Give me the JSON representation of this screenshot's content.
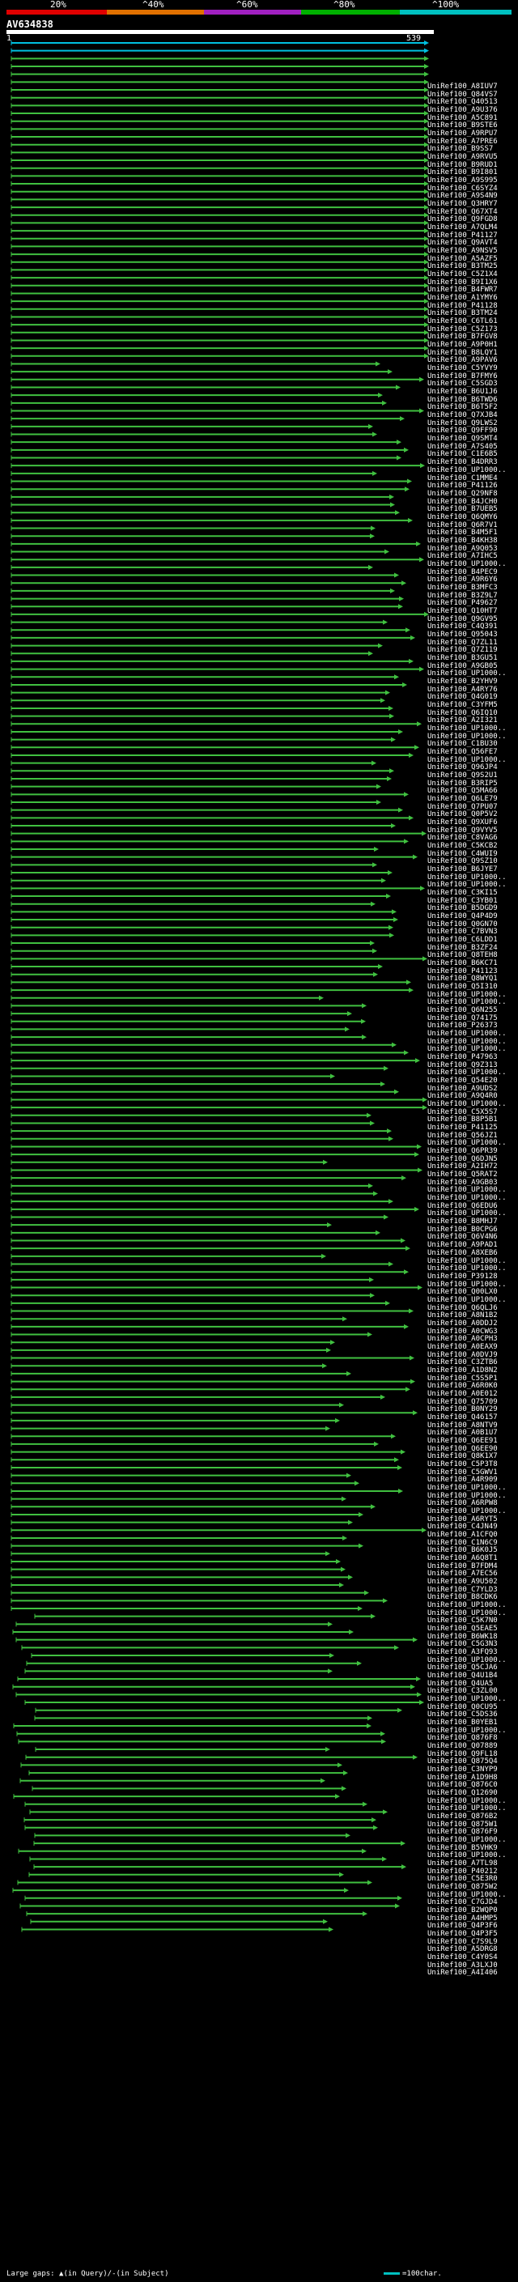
{
  "scale": {
    "labels": [
      "20%",
      "^40%",
      "^60%",
      "^80%",
      "^100%"
    ],
    "colors": [
      "#e00000",
      "#e07000",
      "#a020c0",
      "#00b000",
      "#00c0c0"
    ]
  },
  "query": {
    "name": "AV634838",
    "start": "1",
    "end": "539"
  },
  "hits": [
    "UniRef100_A8IUV7",
    "UniRef100_Q84VS7",
    "UniRef100_Q40513",
    "UniRef100_A9U376",
    "UniRef100_A5C891",
    "UniRef100_B9STE6",
    "UniRef100_A9RPU7",
    "UniRef100_A7PRE6",
    "UniRef100_B9SS7",
    "UniRef100_A9RVU5",
    "UniRef100_B9RUD1",
    "UniRef100_B9I801",
    "UniRef100_A9S995",
    "UniRef100_C6SYZ4",
    "UniRef100_A9S4N9",
    "UniRef100_Q3HRY7",
    "UniRef100_Q67XT4",
    "UniRef100_Q9FGD8",
    "UniRef100_A7QLM4",
    "UniRef100_P41127",
    "UniRef100_Q9AVT4",
    "UniRef100_A9NSV5",
    "UniRef100_A5AZF5",
    "UniRef100_B3TM25",
    "UniRef100_C5Z1X4",
    "UniRef100_B9I1X6",
    "UniRef100_B4FWR7",
    "UniRef100_A1YMY6",
    "UniRef100_P41128",
    "UniRef100_B3TM24",
    "UniRef100_C6TL61",
    "UniRef100_C5Z173",
    "UniRef100_B7FGV8",
    "UniRef100_A9P0H1",
    "UniRef100_B8LQY1",
    "UniRef100_A9PAV6",
    "UniRef100_C5YVY9",
    "UniRef100_B7FMY6",
    "UniRef100_C5SGD3",
    "UniRef100_B6U1J6",
    "UniRef100_B6TWD6",
    "UniRef100_B6T5F2",
    "UniRef100_Q7XJB4",
    "UniRef100_Q9LWS2",
    "UniRef100_Q9FF90",
    "UniRef100_Q9SMT4",
    "UniRef100_A7S405",
    "UniRef100_C1E6B5",
    "UniRef100_B4DRR3",
    "UniRef100_UP1000..",
    "UniRef100_C1MME4",
    "UniRef100_P41126",
    "UniRef100_Q29NF8",
    "UniRef100_B4JCH0",
    "UniRef100_B7UEB5",
    "UniRef100_Q6QMY6",
    "UniRef100_Q6R7V1",
    "UniRef100_B4M5F1",
    "UniRef100_B4KH38",
    "UniRef100_A9Q053",
    "UniRef100_A7IHC5",
    "UniRef100_UP1000..",
    "UniRef100_B4PEC9",
    "UniRef100_A9R6Y6",
    "UniRef100_B3MFC3",
    "UniRef100_B3Z9L7",
    "UniRef100_P49627",
    "UniRef100_Q10HT7",
    "UniRef100_Q9GV95",
    "UniRef100_C4Q391",
    "UniRef100_Q95043",
    "UniRef100_Q7ZL11",
    "UniRef100_Q7Z119",
    "UniRef100_B3GU51",
    "UniRef100_A9GB05",
    "UniRef100_UP1000..",
    "UniRef100_B2YHV9",
    "UniRef100_A4RY76",
    "UniRef100_Q4G019",
    "UniRef100_C3YFM5",
    "UniRef100_Q6IQ10",
    "UniRef100_A2I321",
    "UniRef100_UP1000..",
    "UniRef100_UP1000..",
    "UniRef100_C1BU30",
    "UniRef100_Q56FE7",
    "UniRef100_UP1000..",
    "UniRef100_Q96JP4",
    "UniRef100_Q9S2U1",
    "UniRef100_B3RIP5",
    "UniRef100_Q5MA66",
    "UniRef100_Q6LE79",
    "UniRef100_Q7PU07",
    "UniRef100_Q0P5V2",
    "UniRef100_Q9XUF6",
    "UniRef100_Q9VYV5",
    "UniRef100_C8VAG6",
    "UniRef100_C5KCB2",
    "UniRef100_C4WUI9",
    "UniRef100_Q9SZ10",
    "UniRef100_B6JYE7",
    "UniRef100_UP1000..",
    "UniRef100_UP1000..",
    "UniRef100_C3KI15",
    "UniRef100_C3YB01",
    "UniRef100_B5DGD9",
    "UniRef100_Q4P4D9",
    "UniRef100_Q0GN70",
    "UniRef100_C7BVN3",
    "UniRef100_C6LDD1",
    "UniRef100_B3ZF24",
    "UniRef100_Q8TEH8",
    "UniRef100_B6KC71",
    "UniRef100_P41123",
    "UniRef100_Q8WYQ1",
    "UniRef100_Q5I310",
    "UniRef100_UP1000..",
    "UniRef100_UP1000..",
    "UniRef100_Q6N255",
    "UniRef100_Q74175",
    "UniRef100_P26373",
    "UniRef100_UP1000..",
    "UniRef100_UP1000..",
    "UniRef100_UP1000..",
    "UniRef100_P47963",
    "UniRef100_Q9Z313",
    "UniRef100_UP1000..",
    "UniRef100_Q54E20",
    "UniRef100_A9UDS2",
    "UniRef100_A9Q4R0",
    "UniRef100_UP1000..",
    "UniRef100_C5X5S7",
    "UniRef100_B8P5B1",
    "UniRef100_P41125",
    "UniRef100_Q56JZ1",
    "UniRef100_UP1000..",
    "UniRef100_Q6PR39",
    "UniRef100_Q6DJN5",
    "UniRef100_A2IH72",
    "UniRef100_Q5RAT2",
    "UniRef100_A9GB03",
    "UniRef100_UP1000..",
    "UniRef100_UP1000..",
    "UniRef100_Q6EDU6",
    "UniRef100_UP1000..",
    "UniRef100_B8MHJ7",
    "UniRef100_B0CPG6",
    "UniRef100_Q6V4N6",
    "UniRef100_A9PAD1",
    "UniRef100_A8XEB6",
    "UniRef100_UP1000..",
    "UniRef100_UP1000..",
    "UniRef100_P39128",
    "UniRef100_UP1000..",
    "UniRef100_Q00LX0",
    "UniRef100_UP1000..",
    "UniRef100_Q6QLJ6",
    "UniRef100_A8N1B2",
    "UniRef100_A0DDJ2",
    "UniRef100_A0CWG3",
    "UniRef100_A0CPH3",
    "UniRef100_A0EAX9",
    "UniRef100_A0DVJ9",
    "UniRef100_C3ZTB6",
    "UniRef100_A1D8N2",
    "UniRef100_C5S5P1",
    "UniRef100_A6R0K0",
    "UniRef100_A0E012",
    "UniRef100_Q75709",
    "UniRef100_B0NY29",
    "UniRef100_Q46157",
    "UniRef100_A8NTV9",
    "UniRef100_A0B1U7",
    "UniRef100_Q6EE91",
    "UniRef100_Q6EE90",
    "UniRef100_Q8K1X7",
    "UniRef100_C5P3T8",
    "UniRef100_C5GWV1",
    "UniRef100_A4R909",
    "UniRef100_UP1000..",
    "UniRef100_UP1000..",
    "UniRef100_A6RPW8",
    "UniRef100_UP1000..",
    "UniRef100_A6RYT5",
    "UniRef100_C4JN49",
    "UniRef100_A1CFQ0",
    "UniRef100_C1N6C9",
    "UniRef100_B6K0J5",
    "UniRef100_A6Q8T1",
    "UniRef100_B7FDM4",
    "UniRef100_A7EC56",
    "UniRef100_A9U502",
    "UniRef100_C7YLD3",
    "UniRef100_B8CDK6",
    "UniRef100_UP1000..",
    "UniRef100_UP1000..",
    "UniRef100_C5K7N0",
    "UniRef100_Q5EAE5",
    "UniRef100_B6WK18",
    "UniRef100_C5G3N3",
    "UniRef100_A3FQ93",
    "UniRef100_UP1000..",
    "UniRef100_Q5CJA6",
    "UniRef100_Q4U1B4",
    "UniRef100_Q4UA5",
    "UniRef100_C3ZL00",
    "UniRef100_UP1000..",
    "UniRef100_Q0CU95",
    "UniRef100_C5DS36",
    "UniRef100_B0YEB1",
    "UniRef100_UP1000..",
    "UniRef100_Q876F8",
    "UniRef100_Q07889",
    "UniRef100_Q9FL18",
    "UniRef100_Q875Q4",
    "UniRef100_C3NYP9",
    "UniRef100_A1D9H8",
    "UniRef100_Q876C0",
    "UniRef100_Q12690",
    "UniRef100_UP1000..",
    "UniRef100_UP1000..",
    "UniRef100_Q876B2",
    "UniRef100_Q875W1",
    "UniRef100_Q876F9",
    "UniRef100_UP1000..",
    "UniRef100_B5VHK9",
    "UniRef100_UP1000..",
    "UniRef100_A7TL98",
    "UniRef100_P40212",
    "UniRef100_C5E3R0",
    "UniRef100_Q875W2",
    "UniRef100_UP1000..",
    "UniRef100_C7GJD4",
    "UniRef100_B2WQP0",
    "UniRef100_A4HMP5",
    "UniRef100_Q4P3F6",
    "UniRef100_Q4P3F5",
    "UniRef100_C7S9L9",
    "UniRef100_A5DRG8",
    "UniRef100_C4Y0S4",
    "UniRef100_A3LXJ0",
    "UniRef100_A4I406"
  ],
  "footer": {
    "gaps_label": "Large gaps:",
    "gaps_query_sym": "▲",
    "gaps_query": "(in Query)",
    "gaps_sep": "/",
    "gaps_subject_sym": "-",
    "gaps_subject": "(in Subject)",
    "scale_text": "=100char."
  }
}
